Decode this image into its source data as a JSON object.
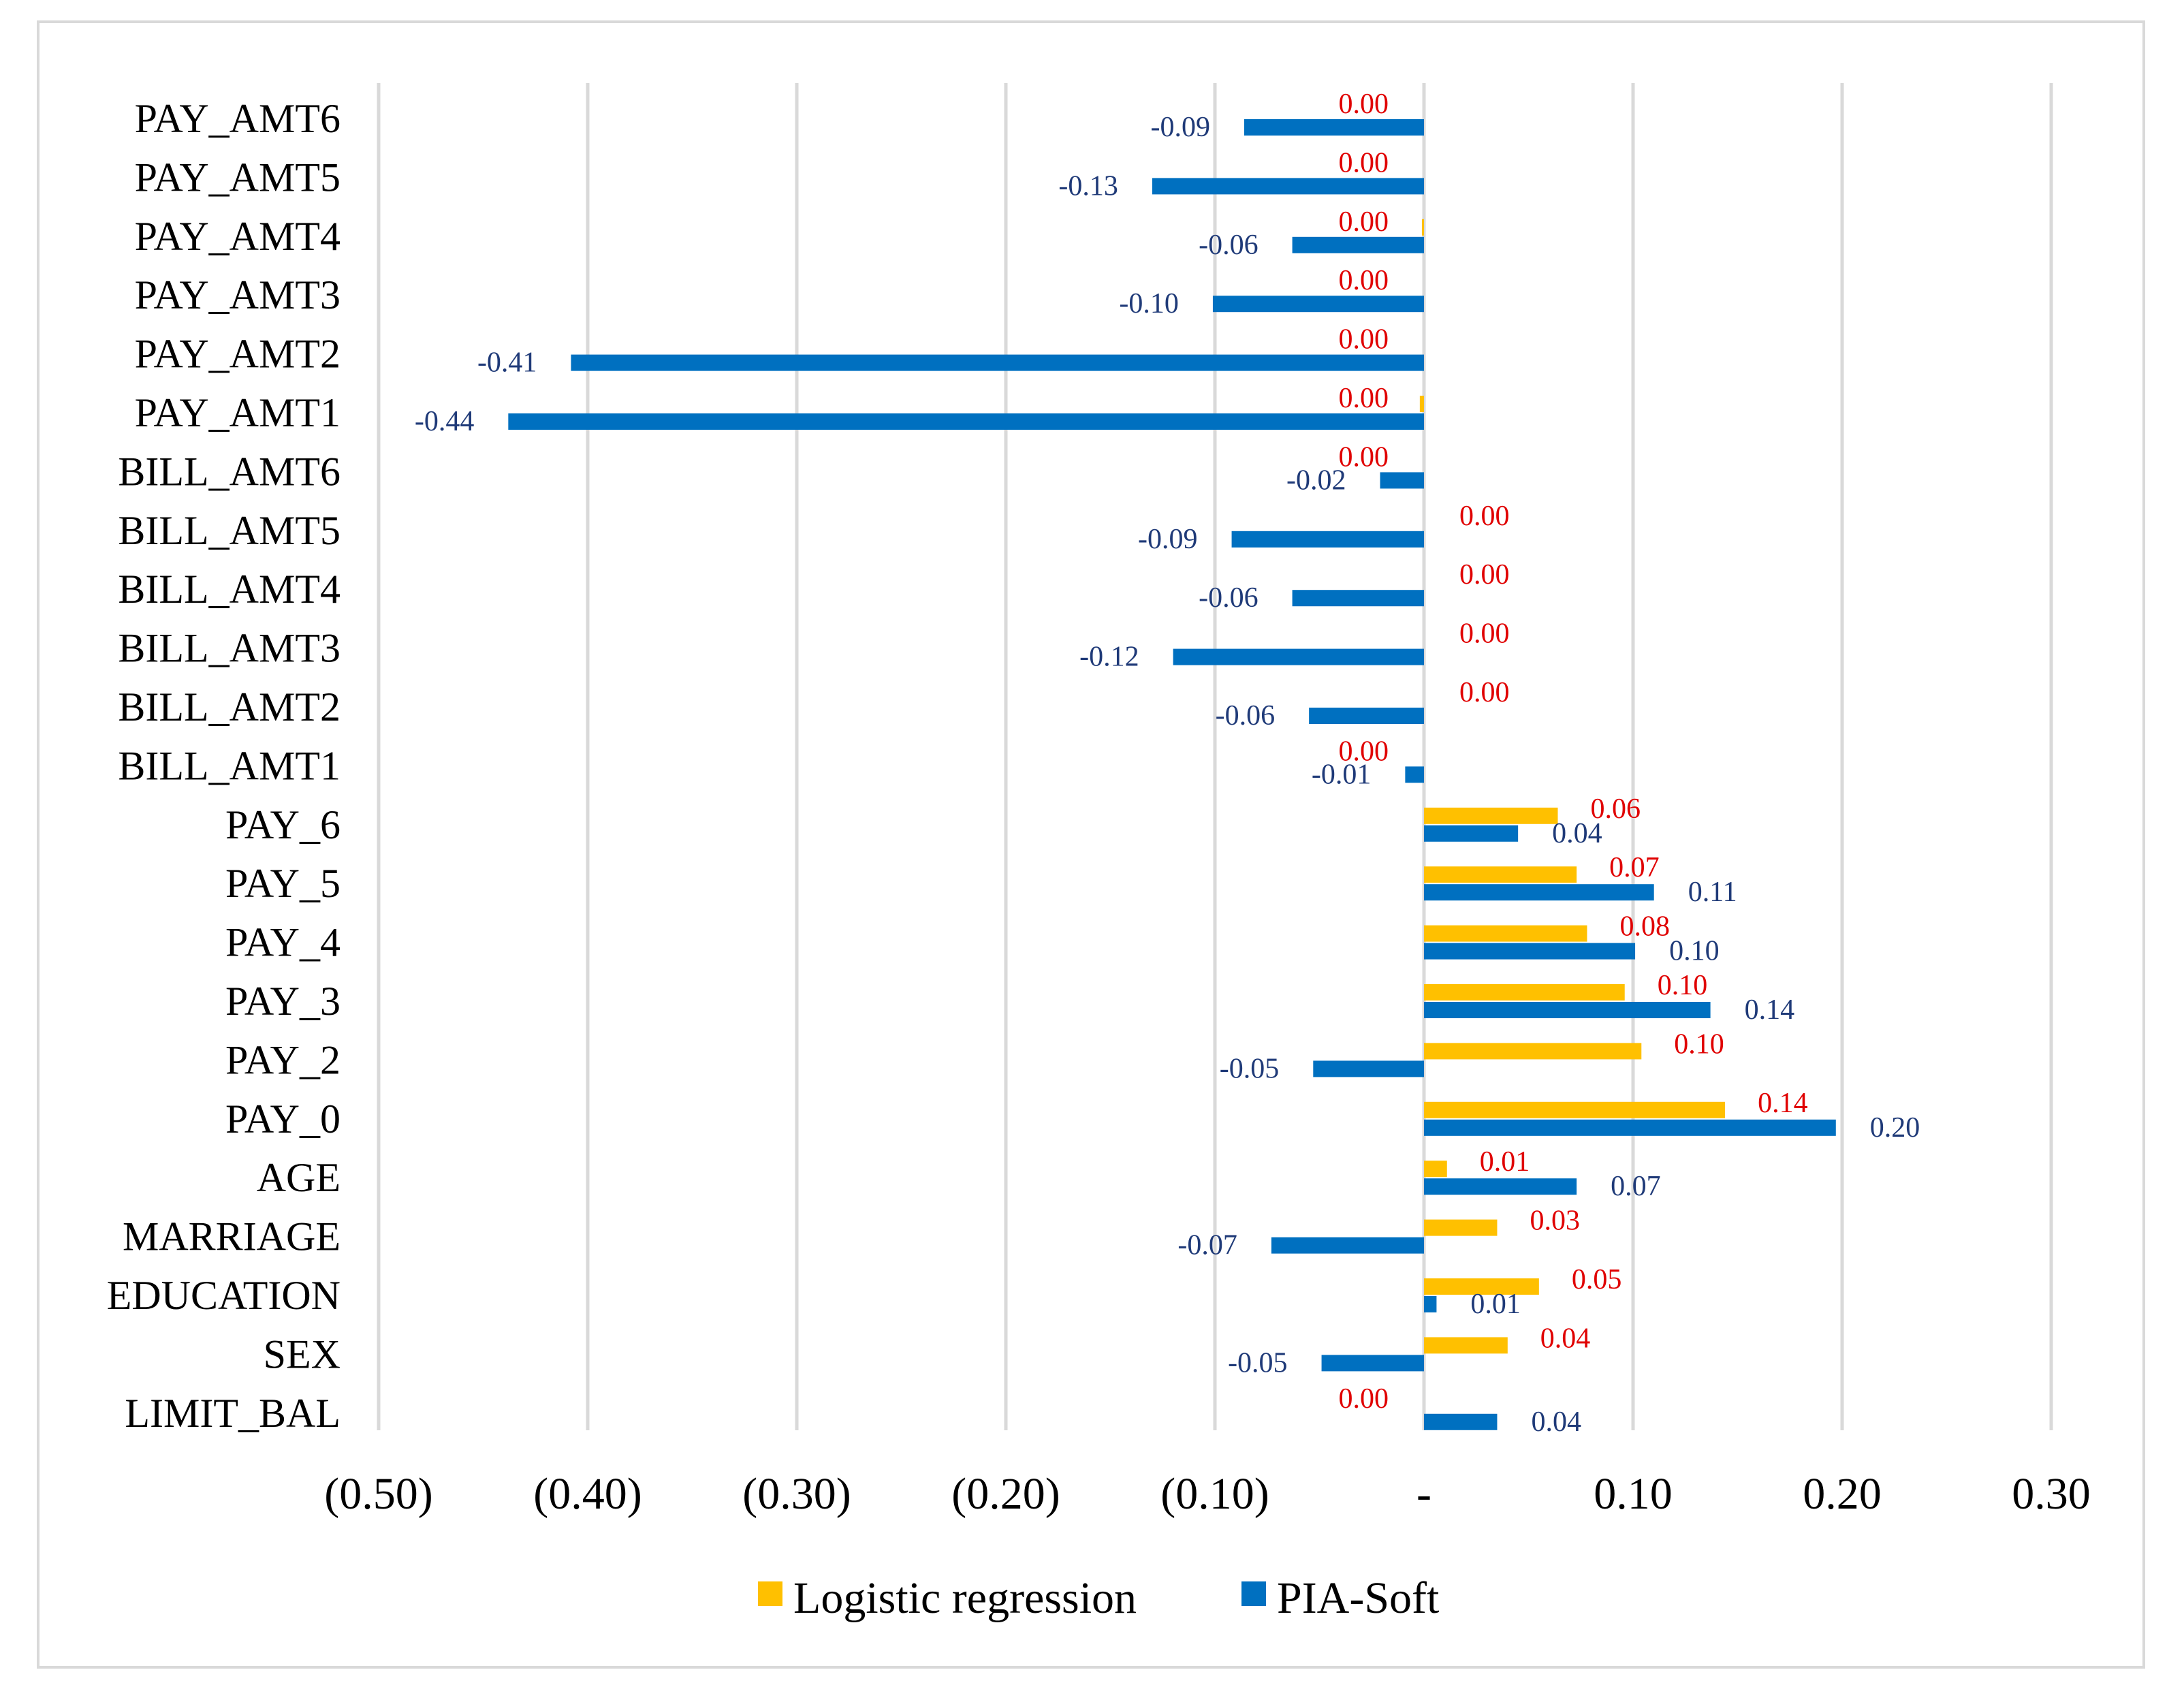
{
  "chart_data": {
    "type": "bar",
    "orientation": "horizontal",
    "title": "",
    "xlabel": "",
    "ylabel": "",
    "xlim": [
      -0.5,
      0.3
    ],
    "grid": true,
    "legend_position": "bottom",
    "x_ticks": [
      -0.5,
      -0.4,
      -0.3,
      -0.2,
      -0.1,
      0,
      0.1,
      0.2,
      0.3
    ],
    "x_tick_labels": [
      "(0.50)",
      "(0.40)",
      "(0.30)",
      "(0.20)",
      "(0.10)",
      "-",
      "0.10",
      "0.20",
      "0.30"
    ],
    "categories": [
      "LIMIT_BAL",
      "SEX",
      "EDUCATION",
      "MARRIAGE",
      "AGE",
      "PAY_0",
      "PAY_2",
      "PAY_3",
      "PAY_4",
      "PAY_5",
      "PAY_6",
      "BILL_AMT1",
      "BILL_AMT2",
      "BILL_AMT3",
      "BILL_AMT4",
      "BILL_AMT5",
      "BILL_AMT6",
      "PAY_AMT1",
      "PAY_AMT2",
      "PAY_AMT3",
      "PAY_AMT4",
      "PAY_AMT5",
      "PAY_AMT6"
    ],
    "series": [
      {
        "name": "Logistic regression",
        "color": "#ffc000",
        "label_color": "#e00000",
        "values": [
          0.0,
          0.04,
          0.055,
          0.035,
          0.011,
          0.144,
          0.104,
          0.096,
          0.078,
          0.073,
          0.064,
          0.0,
          0.0,
          0.0,
          0.0,
          0.0,
          0.0,
          -0.002,
          0.0,
          0.0,
          -0.001,
          0.0,
          0.0
        ],
        "labels": [
          "0.00",
          "0.04",
          "0.05",
          "0.03",
          "0.01",
          "0.14",
          "0.10",
          "0.10",
          "0.08",
          "0.07",
          "0.06",
          "0.00",
          "0.00",
          "0.00",
          "0.00",
          "0.00",
          "0.00",
          "0.00",
          "0.00",
          "0.00",
          "0.00",
          "0.00",
          "0.00"
        ]
      },
      {
        "name": "PIA-Soft",
        "color": "#0070c0",
        "label_color": "#1f3a78",
        "values": [
          0.035,
          -0.049,
          0.006,
          -0.073,
          0.073,
          0.197,
          -0.053,
          0.137,
          0.101,
          0.11,
          0.045,
          -0.009,
          -0.055,
          -0.12,
          -0.063,
          -0.092,
          -0.021,
          -0.438,
          -0.408,
          -0.101,
          -0.063,
          -0.13,
          -0.086
        ],
        "labels": [
          "0.04",
          "-0.05",
          "0.01",
          "-0.07",
          "0.07",
          "0.20",
          "-0.05",
          "0.14",
          "0.10",
          "0.11",
          "0.04",
          "-0.01",
          "-0.06",
          "-0.12",
          "-0.06",
          "-0.09",
          "-0.02",
          "-0.44",
          "-0.41",
          "-0.10",
          "-0.06",
          "-0.13",
          "-0.09"
        ]
      }
    ]
  }
}
